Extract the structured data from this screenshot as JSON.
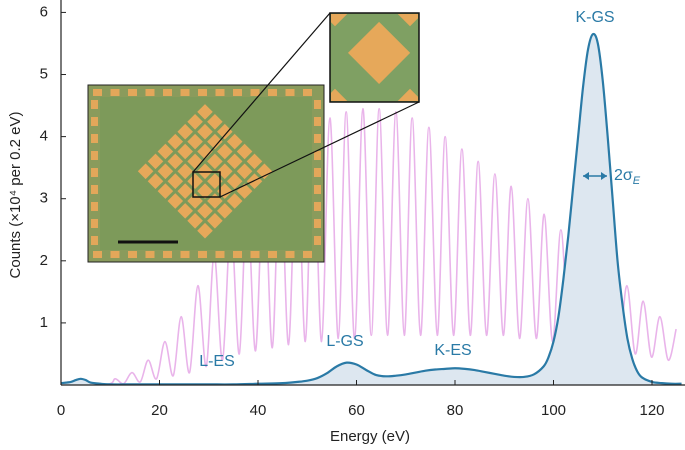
{
  "chart_data": {
    "type": "line",
    "x_label": "Energy (eV)",
    "y_label": "Counts (×10⁴ per 0.2 eV)",
    "xlim": [
      0,
      126.7
    ],
    "ylim": [
      0,
      6.2
    ],
    "xticks": [
      0,
      20,
      40,
      60,
      80,
      100,
      120
    ],
    "yticks": [
      1,
      2,
      3,
      4,
      5,
      6
    ],
    "series": [
      {
        "color": "#e9b4ea",
        "fill": false,
        "x": [
          0,
          9.3,
          11.0,
          12.7,
          14.4,
          16.1,
          17.7,
          19.4,
          21.1,
          22.8,
          24.4,
          26.1,
          27.8,
          29.5,
          31.1,
          32.8,
          34.5,
          36.2,
          37.8,
          39.5,
          41.2,
          42.9,
          44.5,
          46.2,
          47.9,
          49.6,
          51.2,
          52.9,
          54.6,
          56.3,
          57.9,
          59.6,
          61.3,
          63.0,
          64.6,
          66.3,
          68.0,
          69.7,
          71.3,
          73.0,
          74.7,
          76.4,
          78.0,
          79.7,
          81.4,
          83.1,
          84.7,
          86.4,
          88.1,
          89.8,
          91.4,
          93.1,
          94.8,
          96.5,
          98.1,
          99.8,
          101.5,
          103.2,
          104.8,
          106.5,
          108.2,
          109.9,
          111.5,
          113.2,
          114.9,
          116.6,
          118.2,
          119.9,
          121.6,
          123.3,
          124.9
        ],
        "values": [
          0,
          0.01,
          0.1,
          0.02,
          0.2,
          0.05,
          0.4,
          0.1,
          0.7,
          0.15,
          1.1,
          0.2,
          1.6,
          0.3,
          2.1,
          0.4,
          2.6,
          0.5,
          3.0,
          0.55,
          3.4,
          0.6,
          3.7,
          0.65,
          3.95,
          0.7,
          4.15,
          0.7,
          4.3,
          0.75,
          4.4,
          0.75,
          4.45,
          0.8,
          4.45,
          0.8,
          4.4,
          0.8,
          4.3,
          0.8,
          4.15,
          0.8,
          4.0,
          0.8,
          3.8,
          0.8,
          3.6,
          0.8,
          3.4,
          0.8,
          3.2,
          0.75,
          3.0,
          0.75,
          2.75,
          0.7,
          2.5,
          0.7,
          2.25,
          0.65,
          2.0,
          0.6,
          1.8,
          0.55,
          1.6,
          0.5,
          1.35,
          0.45,
          1.1,
          0.4,
          0.9
        ]
      },
      {
        "color": "#2a7aa6",
        "fill": true,
        "fill_color": "#dde7f0",
        "x": [
          0,
          2,
          3,
          4,
          5,
          6,
          8,
          10,
          15,
          20,
          25,
          30,
          35,
          40,
          45,
          48,
          50,
          52,
          54,
          56,
          58,
          60,
          62,
          64,
          66,
          68,
          70,
          72,
          74,
          76,
          78,
          80,
          82,
          84,
          86,
          88,
          90,
          92,
          94,
          96,
          98,
          99,
          100,
          101,
          102,
          103,
          104,
          105,
          106,
          107,
          108,
          109,
          110,
          111,
          112,
          113,
          114,
          115,
          116,
          117,
          118,
          120,
          122,
          124,
          126
        ],
        "values": [
          0.03,
          0.05,
          0.08,
          0.1,
          0.08,
          0.04,
          0.02,
          0.01,
          0.01,
          0.01,
          0.01,
          0.01,
          0.01,
          0.02,
          0.03,
          0.05,
          0.07,
          0.11,
          0.19,
          0.3,
          0.36,
          0.33,
          0.24,
          0.16,
          0.14,
          0.15,
          0.17,
          0.2,
          0.23,
          0.25,
          0.26,
          0.27,
          0.26,
          0.24,
          0.21,
          0.18,
          0.15,
          0.13,
          0.13,
          0.17,
          0.3,
          0.45,
          0.7,
          1.1,
          1.7,
          2.4,
          3.2,
          4.0,
          4.8,
          5.4,
          5.65,
          5.5,
          4.9,
          4.0,
          3.0,
          2.0,
          1.3,
          0.75,
          0.42,
          0.22,
          0.12,
          0.05,
          0.03,
          0.02,
          0.02
        ]
      }
    ],
    "annotations": [
      "K-GS",
      "L-GS",
      "K-ES",
      "L-ES"
    ],
    "width_annotation": {
      "text": "2σ",
      "subscript": "E"
    }
  }
}
